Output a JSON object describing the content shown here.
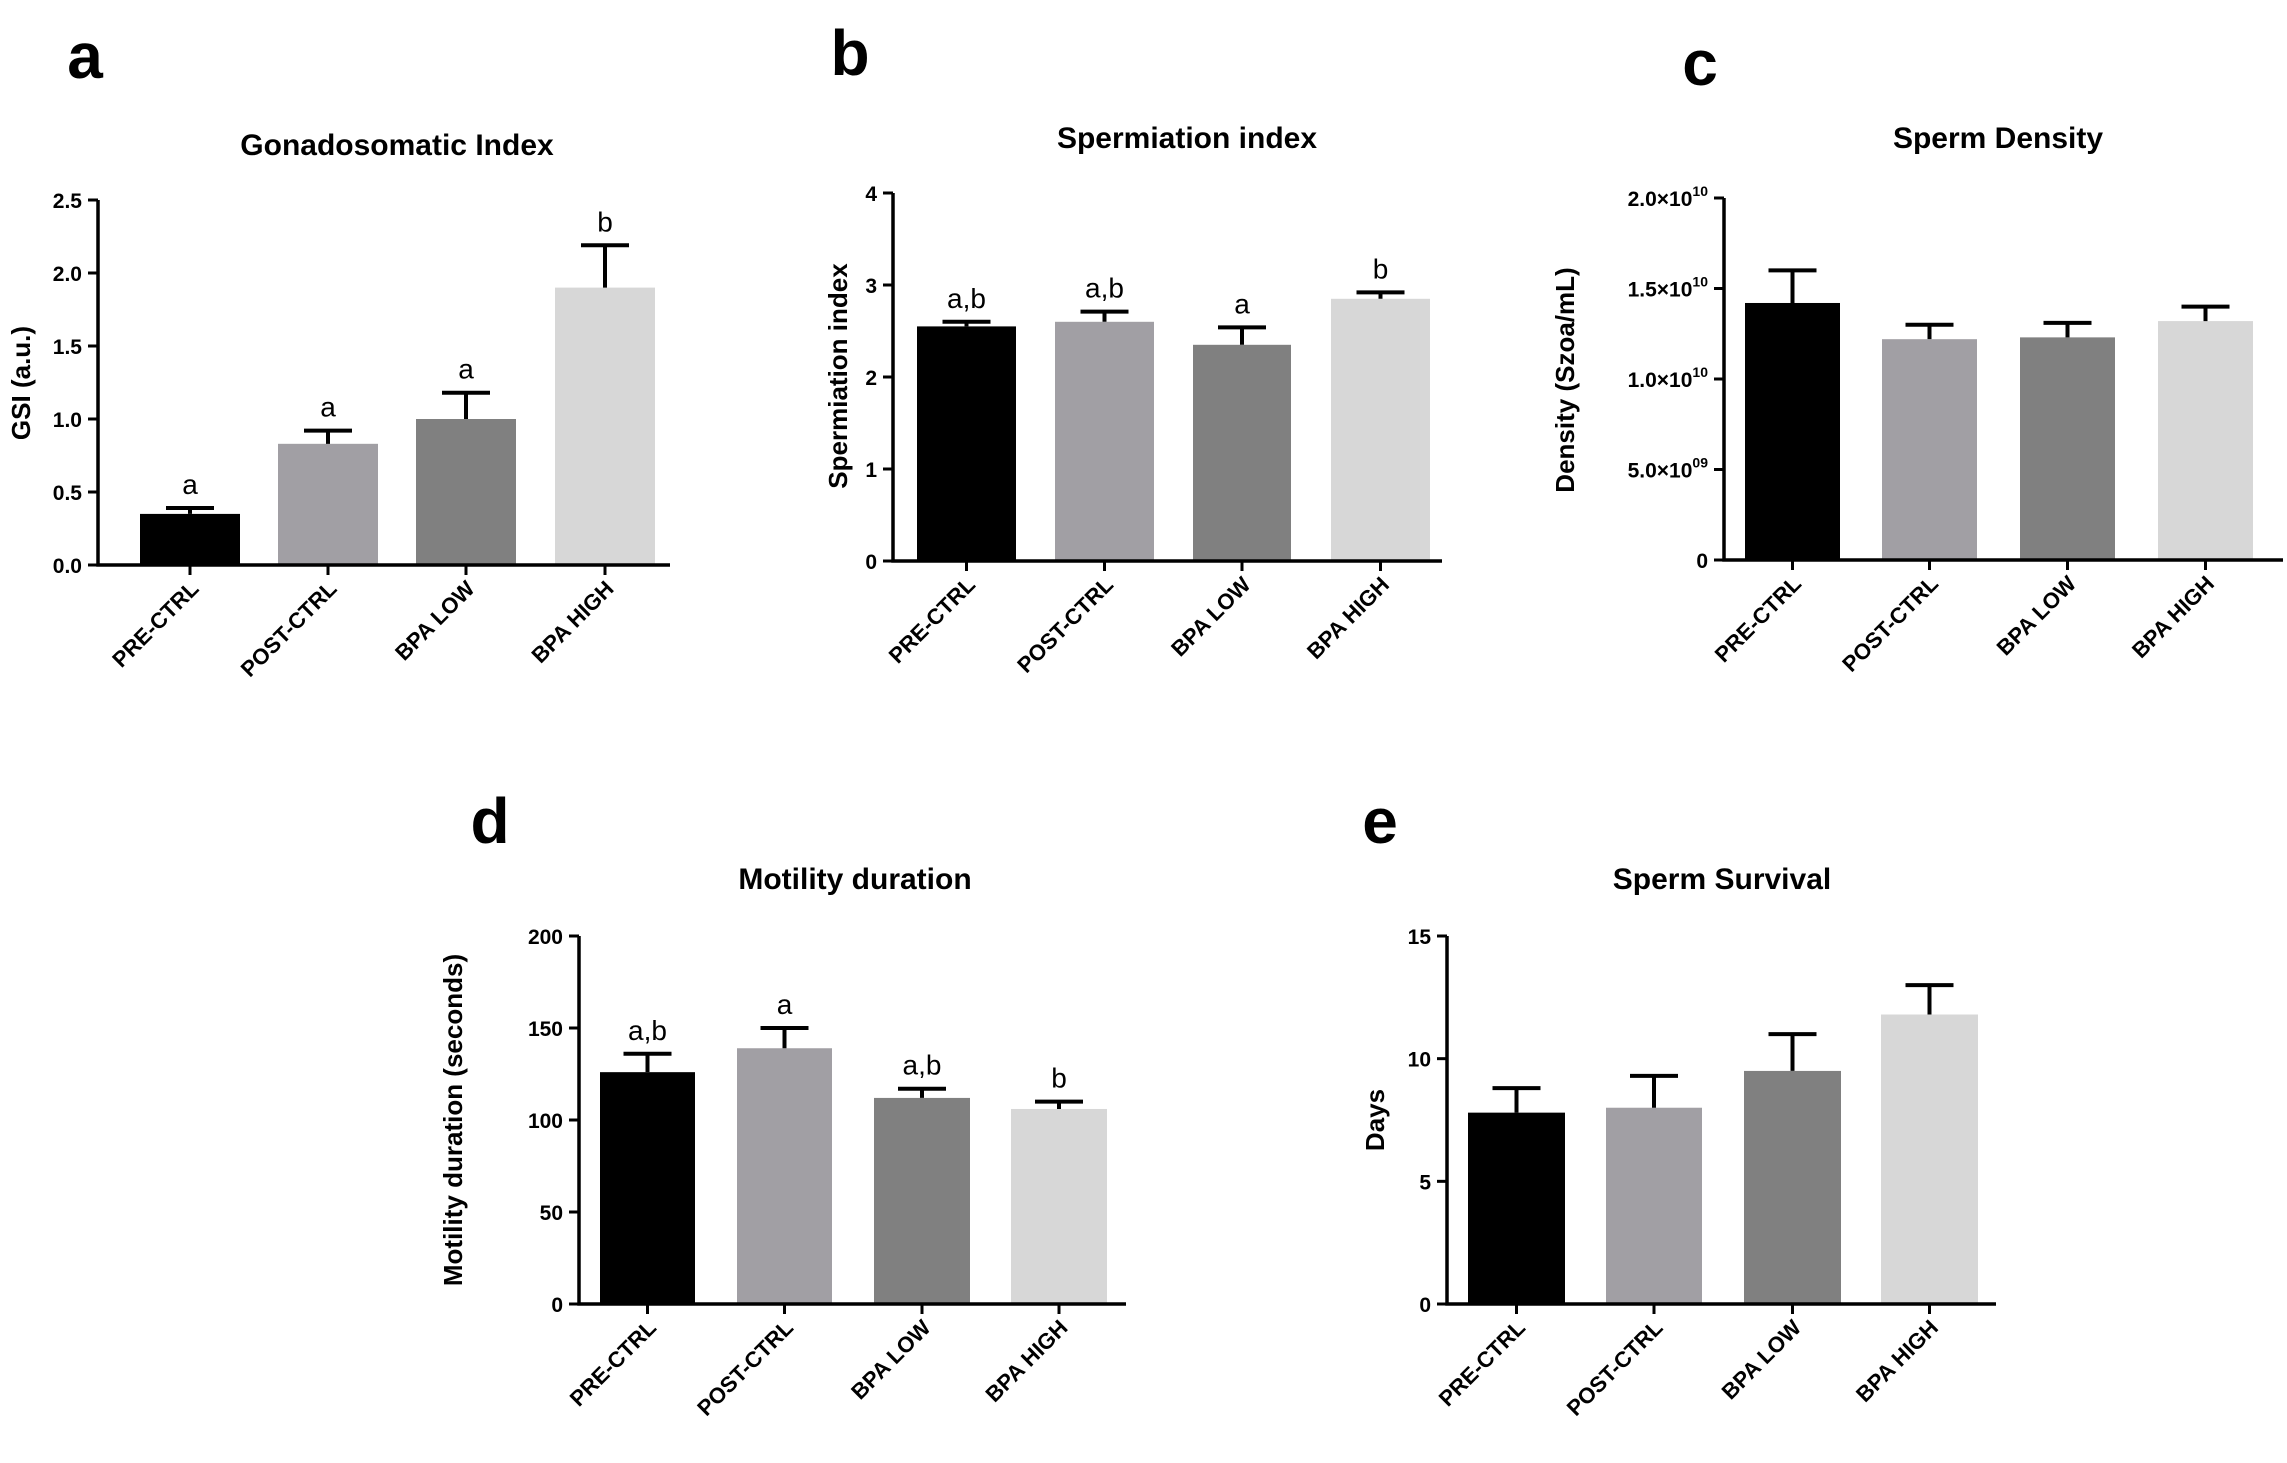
{
  "colors": {
    "PRE-CTRL": "#000000",
    "POST-CTRL": "#a19fa4",
    "BPA LOW": "#808080",
    "BPA HIGH": "#d7d7d7"
  },
  "chart_data": [
    {
      "id": "a",
      "panel_label": "a",
      "type": "bar",
      "title": "Gonadosomatic  Index",
      "ylabel": "GSI (a.u.)",
      "xlabel": "",
      "categories": [
        "PRE-CTRL",
        "POST-CTRL",
        "BPA LOW",
        "BPA HIGH"
      ],
      "values": [
        0.35,
        0.83,
        1.0,
        1.9
      ],
      "errors": [
        0.04,
        0.09,
        0.18,
        0.29
      ],
      "significance": [
        "a",
        "a",
        "a",
        "b"
      ],
      "ylim": [
        0,
        2.5
      ],
      "yticks": [
        0.0,
        0.5,
        1.0,
        1.5,
        2.0,
        2.5
      ],
      "ytick_labels": [
        "0.0",
        "0.5",
        "1.0",
        "1.5",
        "2.0",
        "2.5"
      ]
    },
    {
      "id": "b",
      "panel_label": "b",
      "type": "bar",
      "title": "Spermiation index",
      "ylabel": "Spermiation index",
      "xlabel": "",
      "categories": [
        "PRE-CTRL",
        "POST-CTRL",
        "BPA LOW",
        "BPA HIGH"
      ],
      "values": [
        2.55,
        2.6,
        2.35,
        2.85
      ],
      "errors": [
        0.05,
        0.11,
        0.19,
        0.07
      ],
      "significance": [
        "a,b",
        "a,b",
        "a",
        "b"
      ],
      "ylim": [
        0,
        4
      ],
      "yticks": [
        0,
        1,
        2,
        3,
        4
      ],
      "ytick_labels": [
        "0",
        "1",
        "2",
        "3",
        "4"
      ]
    },
    {
      "id": "c",
      "panel_label": "c",
      "type": "bar",
      "title": "Sperm Density",
      "ylabel": "Density  (Szoa/mL)",
      "xlabel": "",
      "categories": [
        "PRE-CTRL",
        "POST-CTRL",
        "BPA LOW",
        "BPA HIGH"
      ],
      "values": [
        14200000000,
        12200000000,
        12300000000,
        13200000000
      ],
      "errors": [
        1800000000,
        800000000,
        800000000,
        800000000
      ],
      "significance": [
        "",
        "",
        "",
        ""
      ],
      "ylim": [
        0,
        20000000000
      ],
      "yticks": [
        0,
        5000000000,
        10000000000,
        15000000000,
        20000000000
      ],
      "ytick_labels": [
        {
          "mant": "0",
          "exp": ""
        },
        {
          "mant": "5.0×10",
          "exp": "09"
        },
        {
          "mant": "1.0×10",
          "exp": "10"
        },
        {
          "mant": "1.5×10",
          "exp": "10"
        },
        {
          "mant": "2.0×10",
          "exp": "10"
        }
      ]
    },
    {
      "id": "d",
      "panel_label": "d",
      "type": "bar",
      "title": "Motility duration",
      "ylabel": "Motility duration (seconds)",
      "xlabel": "",
      "categories": [
        "PRE-CTRL",
        "POST-CTRL",
        "BPA LOW",
        "BPA HIGH"
      ],
      "values": [
        126,
        139,
        112,
        106
      ],
      "errors": [
        10,
        11,
        5,
        4
      ],
      "significance": [
        "a,b",
        "a",
        "a,b",
        "b"
      ],
      "ylim": [
        0,
        200
      ],
      "yticks": [
        0,
        50,
        100,
        150,
        200
      ],
      "ytick_labels": [
        "0",
        "50",
        "100",
        "150",
        "200"
      ]
    },
    {
      "id": "e",
      "panel_label": "e",
      "type": "bar",
      "title": "Sperm Survival",
      "ylabel": "Days",
      "xlabel": "",
      "categories": [
        "PRE-CTRL",
        "POST-CTRL",
        "BPA LOW",
        "BPA HIGH"
      ],
      "values": [
        7.8,
        8.0,
        9.5,
        11.8
      ],
      "errors": [
        1.0,
        1.3,
        1.5,
        1.2
      ],
      "significance": [
        "",
        "",
        "",
        ""
      ],
      "ylim": [
        0,
        15
      ],
      "yticks": [
        0,
        5,
        10,
        15
      ],
      "ytick_labels": [
        "0",
        "5",
        "10",
        "15"
      ]
    }
  ]
}
